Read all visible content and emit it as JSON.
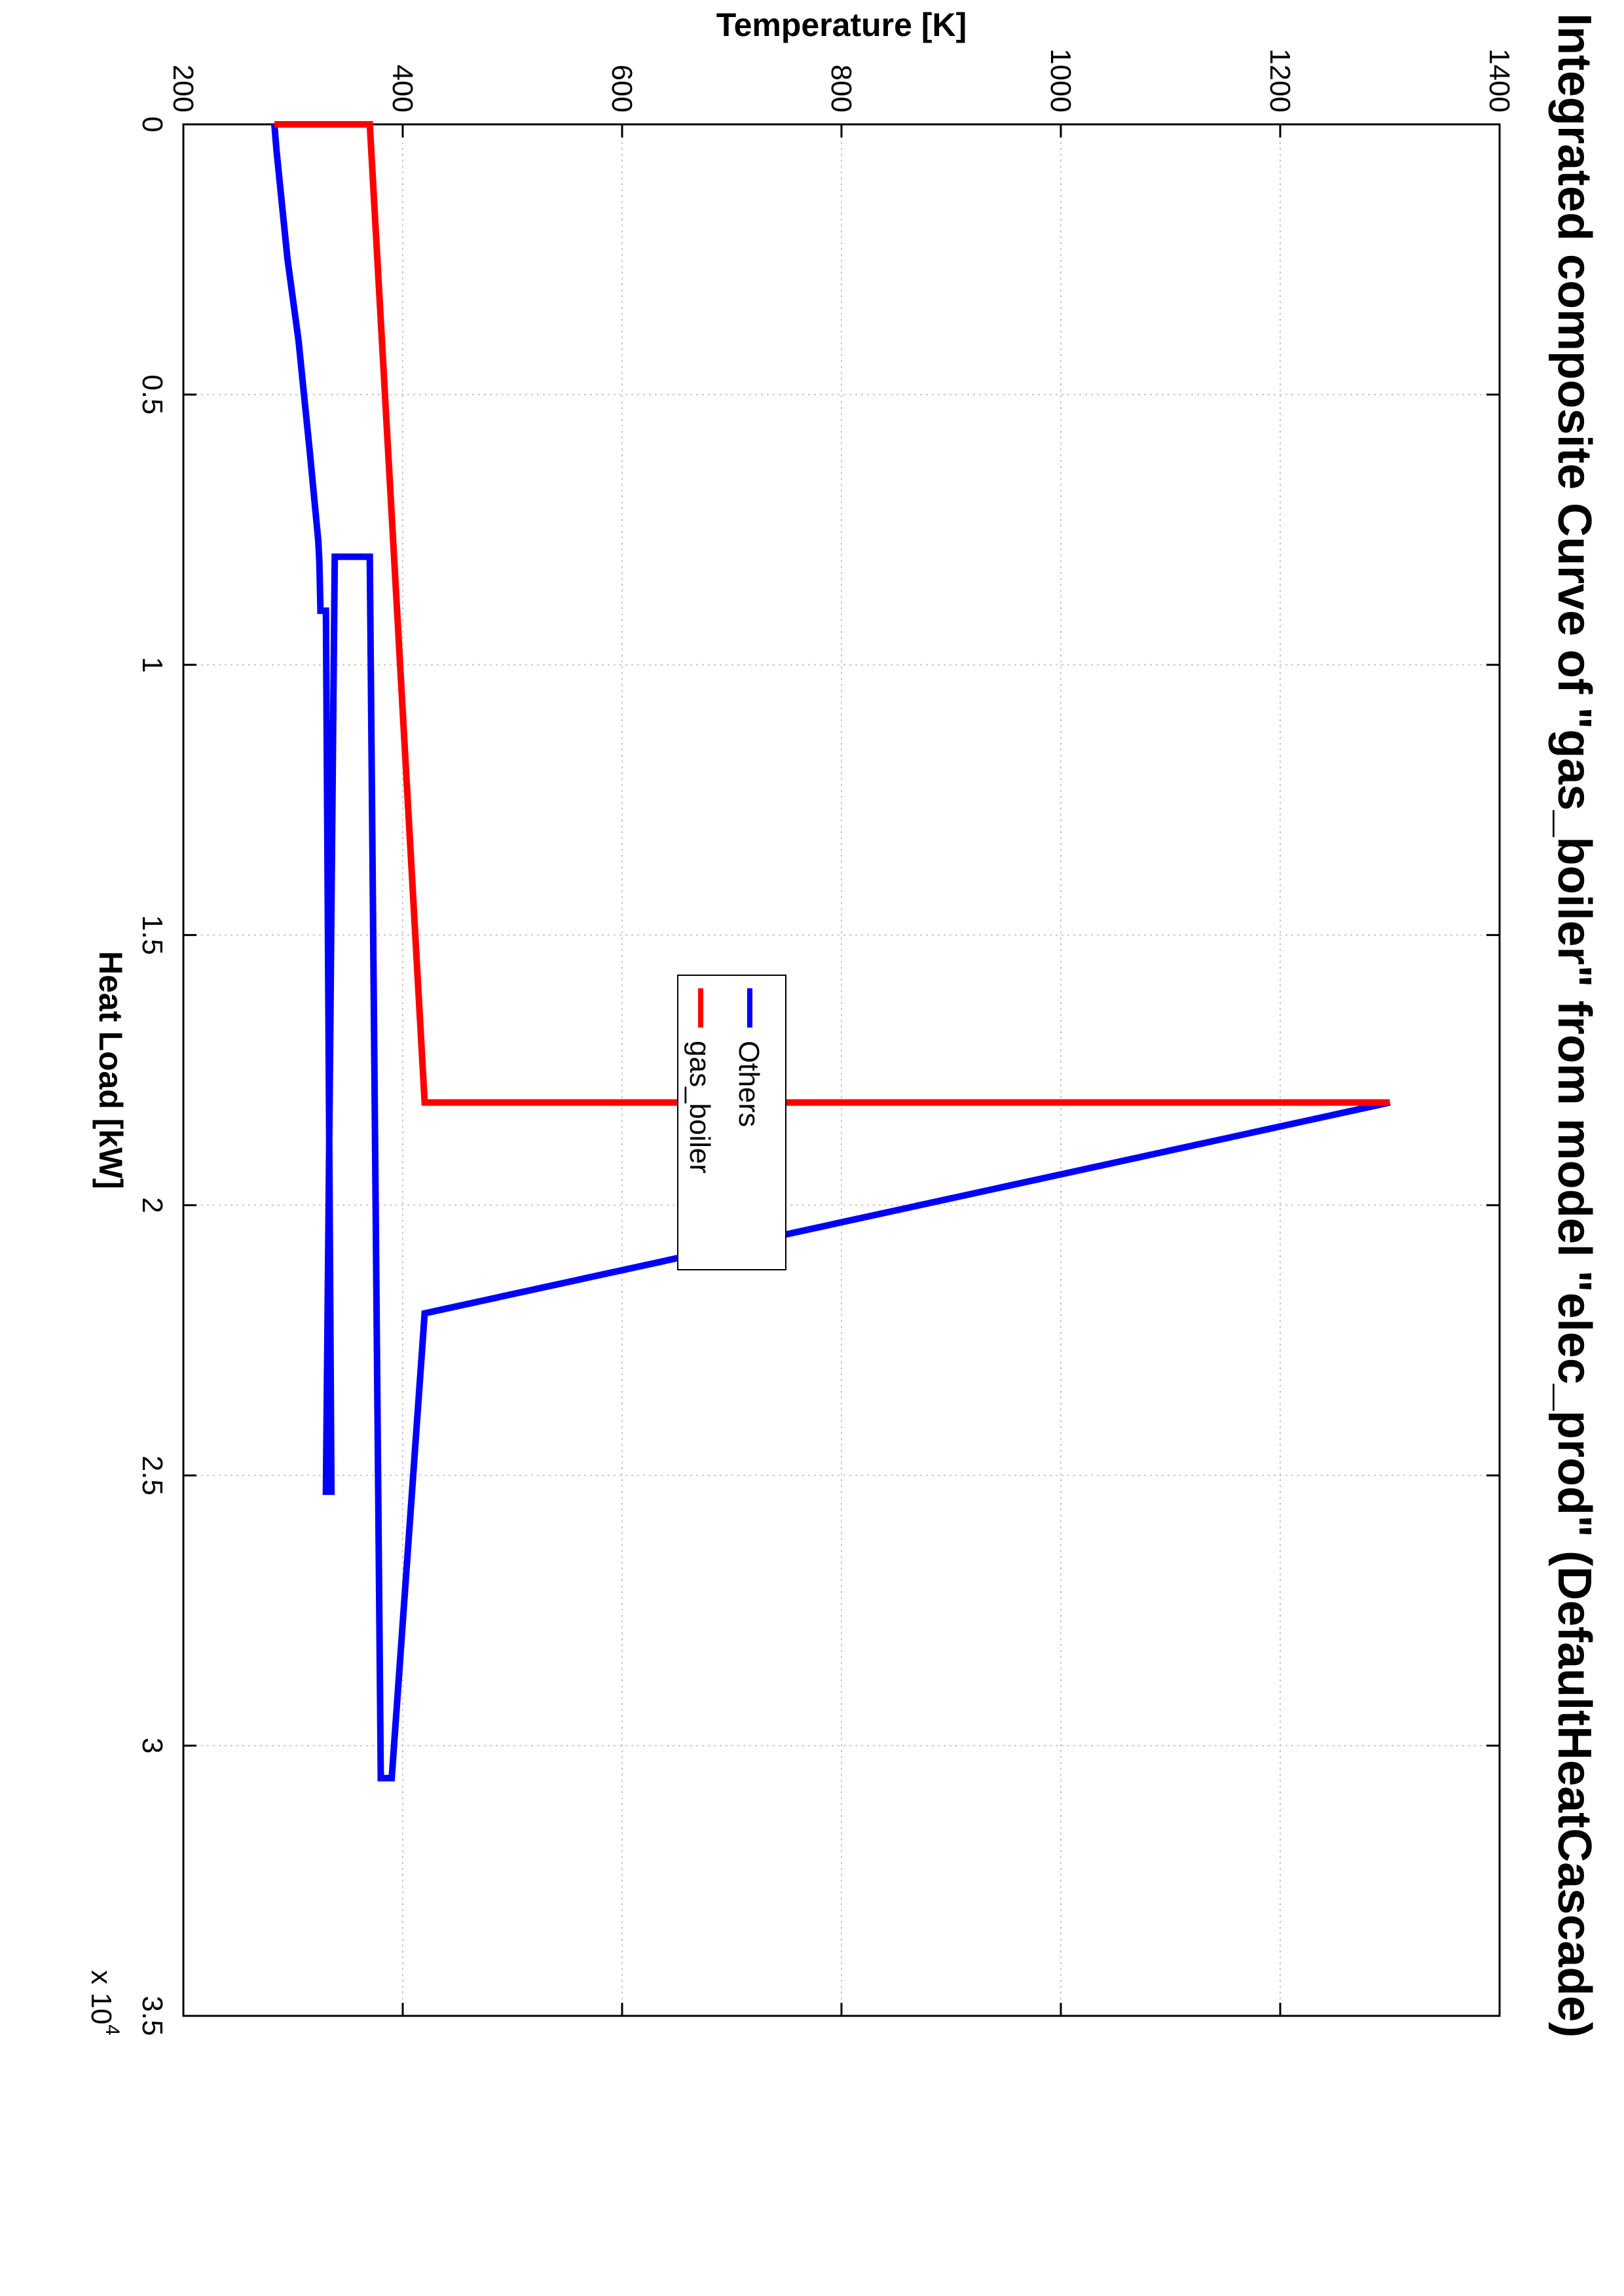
{
  "chart_data": {
    "type": "line",
    "title": "Integrated composite Curve of \"gas_boiler\" from model \"elec_prod\" (DefaultHeatCascade)",
    "xlabel": "Heat Load [kW]",
    "ylabel": "Temperature [K]",
    "x_multiplier_label": "x 10",
    "x_multiplier_exponent": "4",
    "xlim": [
      0,
      35000
    ],
    "ylim": [
      200,
      1400
    ],
    "xticks": [
      0,
      5000,
      10000,
      15000,
      20000,
      25000,
      30000,
      35000
    ],
    "xtick_labels": [
      "0",
      "0.5",
      "1",
      "1.5",
      "2",
      "2.5",
      "3",
      "3.5"
    ],
    "yticks": [
      200,
      400,
      600,
      800,
      1000,
      1200,
      1400
    ],
    "ytick_labels": [
      "200",
      "400",
      "600",
      "800",
      "1000",
      "1200",
      "1400"
    ],
    "grid": true,
    "legend": {
      "placement": "center-right",
      "entries": [
        "Others",
        "gas_boiler"
      ]
    },
    "series": [
      {
        "name": "Others",
        "color": "#0000ff",
        "x": [
          0,
          500,
          2500,
          4000,
          5000,
          6000,
          7700,
          8100,
          9000,
          9000,
          25300,
          25300,
          8000,
          8000,
          30600,
          30600,
          22000,
          18100
        ],
        "y": [
          283,
          285,
          295,
          305,
          310,
          315,
          323,
          324,
          325,
          330,
          335,
          330,
          338,
          370,
          380,
          390,
          420,
          1300
        ]
      },
      {
        "name": "gas_boiler",
        "color": "#ff0000",
        "x": [
          0,
          0,
          18100,
          18100
        ],
        "y": [
          283,
          370,
          420,
          1300
        ]
      }
    ]
  }
}
